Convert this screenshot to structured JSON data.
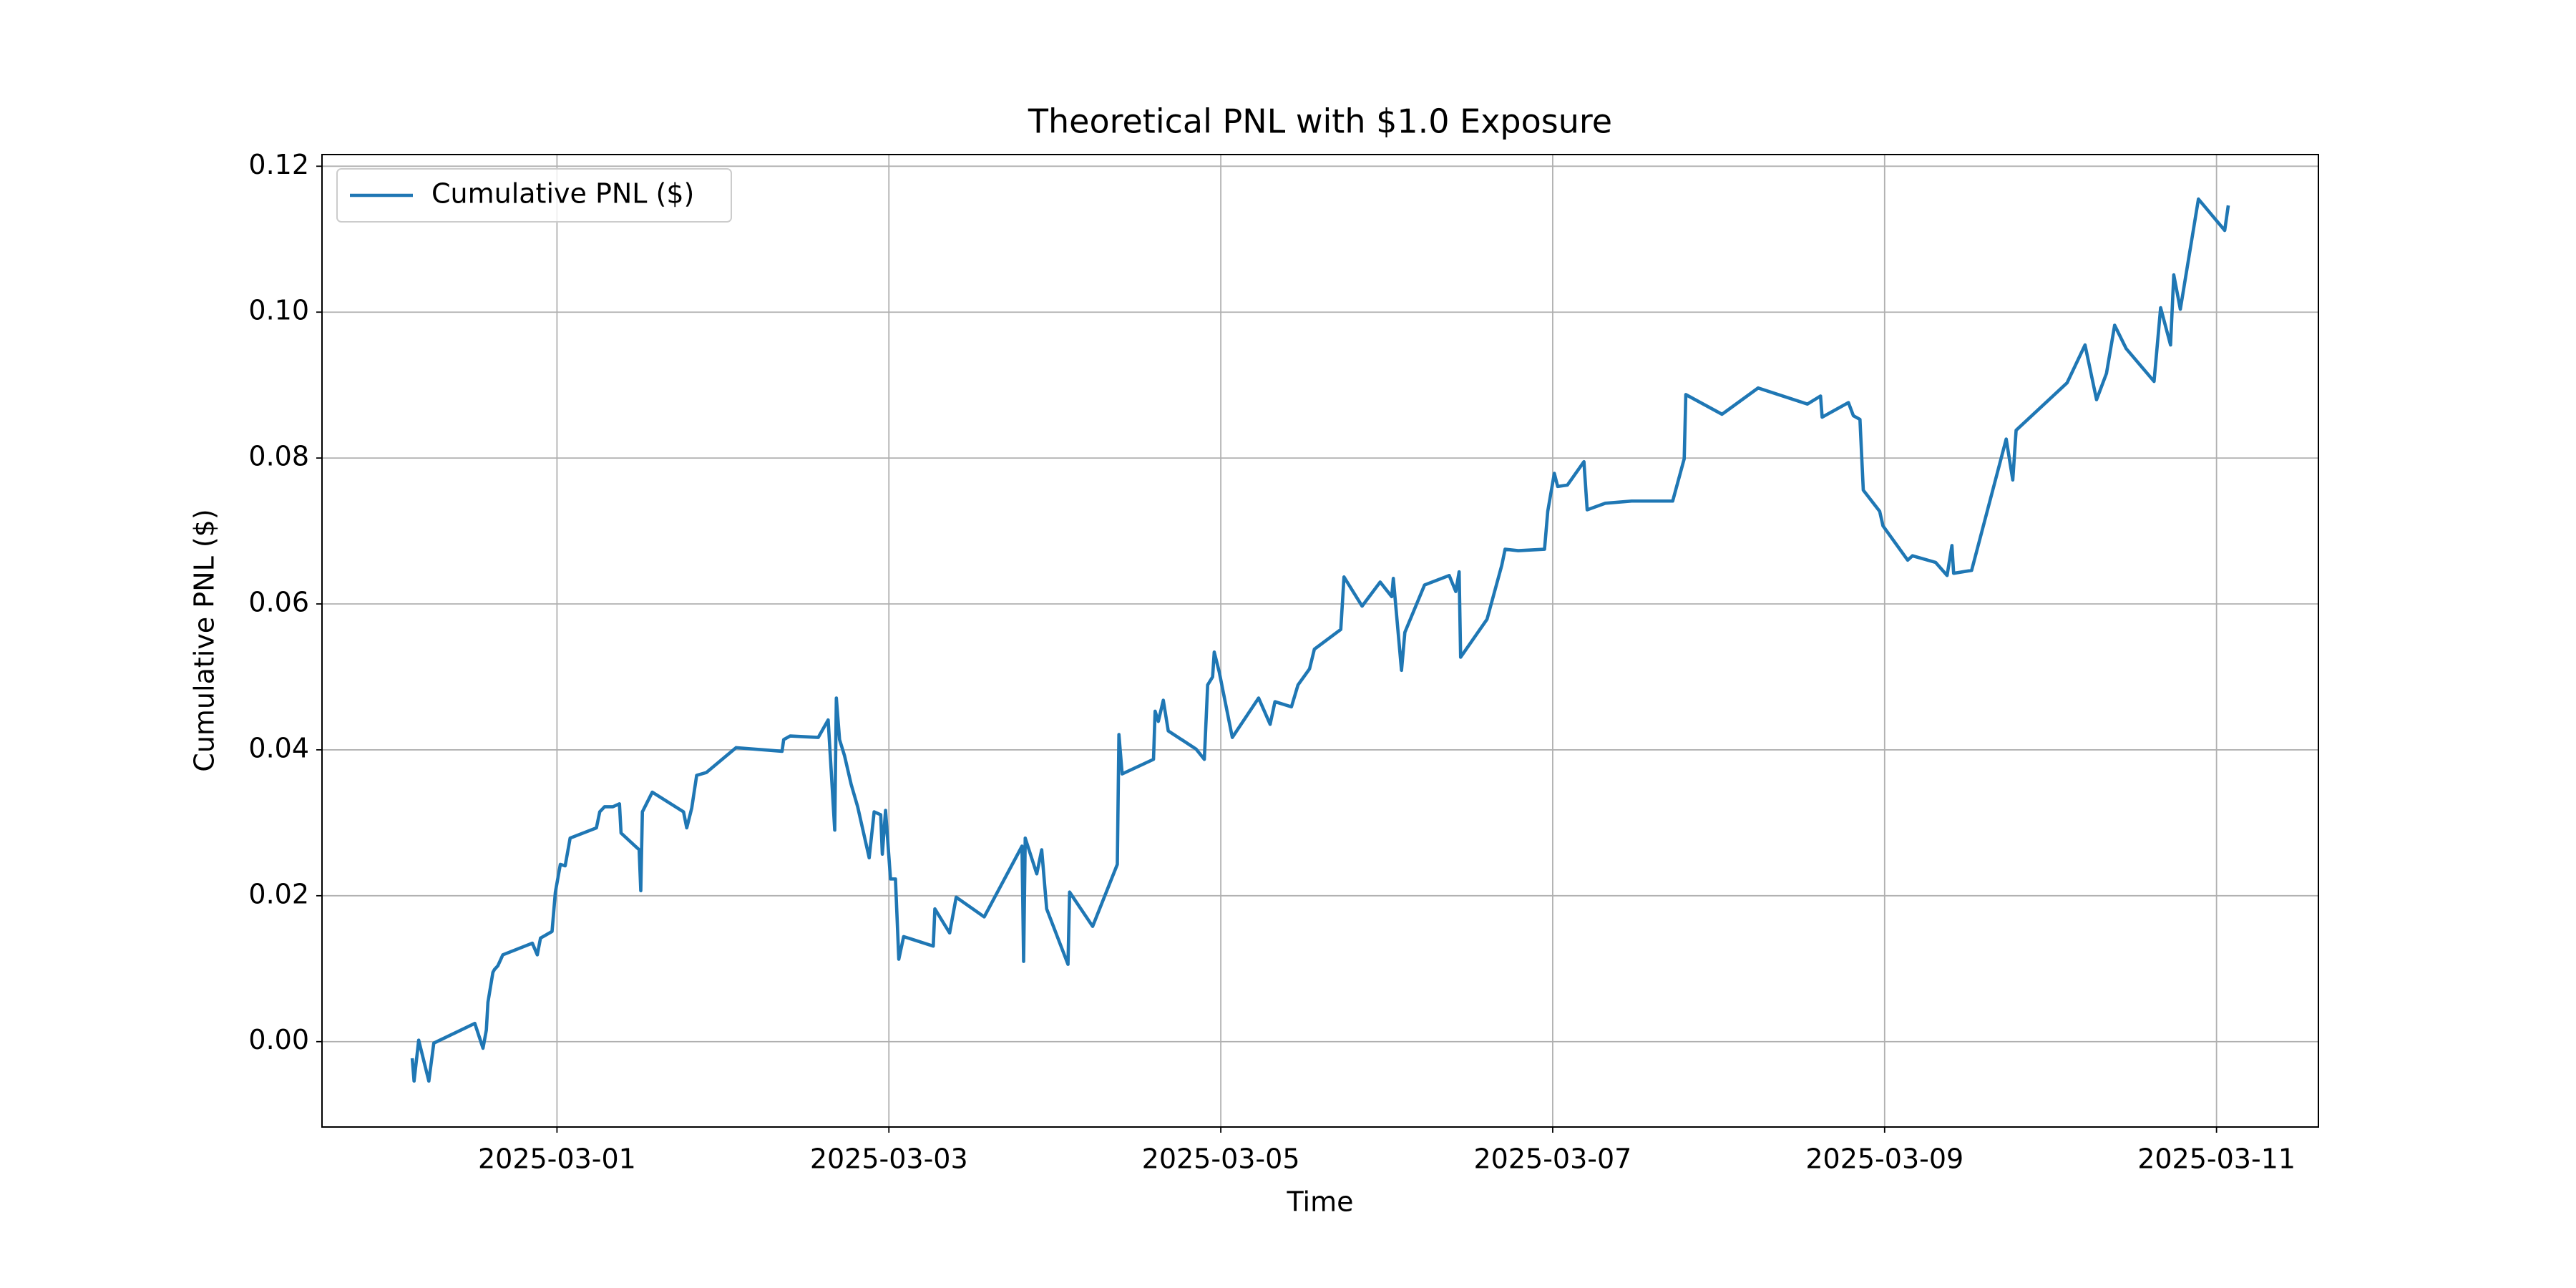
{
  "chart_data": {
    "type": "line",
    "title": "Theoretical PNL with $1.0 Exposure",
    "xlabel": "Time",
    "ylabel": "Cumulative PNL ($)",
    "x": [
      "2025-02-28 03:05",
      "2025-02-28 03:20",
      "2025-02-28 04:00",
      "2025-02-28 05:28",
      "2025-02-28 06:11",
      "2025-02-28 12:07",
      "2025-02-28 13:18",
      "2025-02-28 13:47",
      "2025-02-28 14:01",
      "2025-02-28 14:44",
      "2025-02-28 14:58",
      "2025-02-28 15:27",
      "2025-02-28 16:10",
      "2025-02-28 20:26",
      "2025-02-28 21:09",
      "2025-02-28 21:37",
      "2025-02-28 23:17",
      "2025-02-28 23:46",
      "2025-03-01 00:29",
      "2025-03-01 01:11",
      "2025-03-01 01:54",
      "2025-03-01 05:42",
      "2025-03-01 06:11",
      "2025-03-01 06:53",
      "2025-03-01 08:05",
      "2025-03-01 09:02",
      "2025-03-01 09:16",
      "2025-03-01 11:53",
      "2025-03-01 12:07",
      "2025-03-01 12:21",
      "2025-03-01 13:47",
      "2025-03-01 18:18",
      "2025-03-01 18:46",
      "2025-03-01 19:29",
      "2025-03-01 20:12",
      "2025-03-01 21:37",
      "2025-03-02 01:54",
      "2025-03-02 08:33",
      "2025-03-02 08:47",
      "2025-03-02 09:44",
      "2025-03-02 13:47",
      "2025-03-02 15:13",
      "2025-03-02 16:10",
      "2025-03-02 16:24",
      "2025-03-02 16:52",
      "2025-03-02 17:35",
      "2025-03-02 18:32",
      "2025-03-02 19:29",
      "2025-03-02 21:09",
      "2025-03-02 21:52",
      "2025-03-02 22:49",
      "2025-03-02 23:03",
      "2025-03-02 23:31",
      "2025-03-03 00:14",
      "2025-03-03 00:57",
      "2025-03-03 01:26",
      "2025-03-03 02:08",
      "2025-03-03 06:25",
      "2025-03-03 06:39",
      "2025-03-03 08:47",
      "2025-03-03 09:44",
      "2025-03-03 13:47",
      "2025-03-03 19:15",
      "2025-03-03 19:29",
      "2025-03-03 19:43",
      "2025-03-03 21:23",
      "2025-03-03 22:06",
      "2025-03-03 22:49",
      "2025-03-04 01:54",
      "2025-03-04 02:08",
      "2025-03-04 05:28",
      "2025-03-04 09:02",
      "2025-03-04 09:16",
      "2025-03-04 09:44",
      "2025-03-04 14:16",
      "2025-03-04 14:30",
      "2025-03-04 14:58",
      "2025-03-04 15:41",
      "2025-03-04 16:24",
      "2025-03-04 20:26",
      "2025-03-04 21:37",
      "2025-03-04 22:06",
      "2025-03-04 22:49",
      "2025-03-04 23:03",
      "2025-03-04 23:46",
      "2025-03-05 01:40",
      "2025-03-05 05:28",
      "2025-03-05 07:08",
      "2025-03-05 07:50",
      "2025-03-05 10:13",
      "2025-03-05 11:10",
      "2025-03-05 12:50",
      "2025-03-05 13:32",
      "2025-03-05 17:21",
      "2025-03-05 17:49",
      "2025-03-05 20:26",
      "2025-03-05 23:03",
      "2025-03-06 00:43",
      "2025-03-06 00:57",
      "2025-03-06 02:08",
      "2025-03-06 02:37",
      "2025-03-06 05:28",
      "2025-03-06 09:02",
      "2025-03-06 09:59",
      "2025-03-06 10:28",
      "2025-03-06 10:41",
      "2025-03-06 14:30",
      "2025-03-06 16:38",
      "2025-03-06 17:07",
      "2025-03-06 19:01",
      "2025-03-06 22:49",
      "2025-03-06 23:17",
      "2025-03-07 00:14",
      "2025-03-07 00:43",
      "2025-03-07 02:08",
      "2025-03-07 04:31",
      "2025-03-07 04:59",
      "2025-03-07 07:36",
      "2025-03-07 11:25",
      "2025-03-07 17:21",
      "2025-03-07 19:01",
      "2025-03-07 19:15",
      "2025-03-08 00:29",
      "2025-03-08 05:42",
      "2025-03-08 12:50",
      "2025-03-08 14:44",
      "2025-03-08 14:58",
      "2025-03-08 18:46",
      "2025-03-08 19:29",
      "2025-03-08 20:26",
      "2025-03-08 20:55",
      "2025-03-08 23:17",
      "2025-03-08 23:46",
      "2025-03-09 03:20",
      "2025-03-09 04:02",
      "2025-03-09 07:22",
      "2025-03-09 09:02",
      "2025-03-09 09:44",
      "2025-03-09 09:59",
      "2025-03-09 12:35",
      "2025-03-09 17:35",
      "2025-03-09 18:32",
      "2025-03-09 19:01",
      "2025-03-10 02:23",
      "2025-03-10 04:59",
      "2025-03-10 06:39",
      "2025-03-10 08:05",
      "2025-03-10 09:16",
      "2025-03-10 10:56",
      "2025-03-10 14:58",
      "2025-03-10 15:55",
      "2025-03-10 17:21",
      "2025-03-10 17:49",
      "2025-03-10 18:46",
      "2025-03-10 21:23",
      "2025-03-11 01:11",
      "2025-03-11 01:40"
    ],
    "series": [
      {
        "name": "Cumulative PNL ($)",
        "color": "#1f77b4",
        "values": [
          -0.0025,
          -0.0054,
          0.0002,
          -0.0054,
          -0.0002,
          0.0025,
          -0.0009,
          0.0016,
          0.0054,
          0.0095,
          0.0099,
          0.0104,
          0.0119,
          0.0135,
          0.0119,
          0.0142,
          0.0151,
          0.0205,
          0.0243,
          0.0241,
          0.0279,
          0.0293,
          0.0315,
          0.0322,
          0.0322,
          0.0326,
          0.0286,
          0.0263,
          0.0207,
          0.0315,
          0.0342,
          0.0315,
          0.0293,
          0.032,
          0.0365,
          0.0369,
          0.0403,
          0.0398,
          0.0414,
          0.0419,
          0.0417,
          0.0441,
          0.029,
          0.0471,
          0.0414,
          0.0392,
          0.0353,
          0.0322,
          0.0252,
          0.0315,
          0.0311,
          0.0257,
          0.0317,
          0.0223,
          0.0223,
          0.0113,
          0.0144,
          0.0131,
          0.0182,
          0.0149,
          0.0198,
          0.0171,
          0.0268,
          0.011,
          0.0279,
          0.023,
          0.0263,
          0.0182,
          0.0106,
          0.0205,
          0.0158,
          0.0243,
          0.0421,
          0.0367,
          0.0387,
          0.0453,
          0.0439,
          0.0468,
          0.0426,
          0.0401,
          0.0387,
          0.0489,
          0.05,
          0.0534,
          0.0507,
          0.0417,
          0.0471,
          0.0435,
          0.0466,
          0.0459,
          0.0489,
          0.0511,
          0.0538,
          0.0565,
          0.0637,
          0.0597,
          0.063,
          0.061,
          0.0635,
          0.0509,
          0.0561,
          0.0626,
          0.0639,
          0.0617,
          0.0644,
          0.0527,
          0.0579,
          0.0653,
          0.0675,
          0.0673,
          0.0675,
          0.0727,
          0.0779,
          0.0761,
          0.0763,
          0.0795,
          0.0729,
          0.0738,
          0.0741,
          0.0741,
          0.0799,
          0.0887,
          0.086,
          0.0896,
          0.0874,
          0.0885,
          0.0856,
          0.0876,
          0.0858,
          0.0853,
          0.0756,
          0.0727,
          0.0707,
          0.066,
          0.0666,
          0.0657,
          0.0639,
          0.068,
          0.0642,
          0.0646,
          0.0826,
          0.077,
          0.0838,
          0.0903,
          0.0955,
          0.088,
          0.0916,
          0.0982,
          0.095,
          0.0905,
          0.1006,
          0.0955,
          0.1051,
          0.1004,
          0.1155,
          0.1112,
          0.1144
        ]
      }
    ],
    "xlim": [
      "2025-02-27 14:01",
      "2025-03-11 14:44"
    ],
    "xticks": [
      "2025-03-01",
      "2025-03-03",
      "2025-03-05",
      "2025-03-07",
      "2025-03-09",
      "2025-03-11"
    ],
    "ylim": [
      -0.0117,
      0.1216
    ],
    "yticks": [
      {
        "value": 0,
        "label": "0.00"
      },
      0.02,
      0.04,
      0.06,
      0.08,
      {
        "value": 0.1,
        "label": "0.10"
      },
      0.12
    ],
    "grid": true,
    "legend": "upper left"
  }
}
